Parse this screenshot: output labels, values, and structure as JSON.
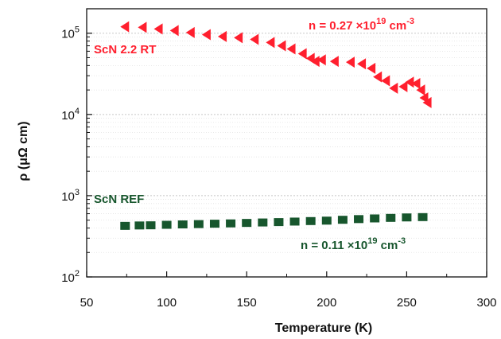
{
  "chart_data": {
    "type": "scatter",
    "xlabel": "Temperature (K)",
    "ylabel": "ρ (μΩ cm)",
    "xlim": [
      50,
      300
    ],
    "ylim": [
      100,
      200000
    ],
    "yscale": "log",
    "grid": "horizontal-dotted",
    "x_ticks": [
      50,
      100,
      150,
      200,
      250,
      300
    ],
    "y_ticks": [
      {
        "value": 100,
        "base": "10",
        "exp": "2"
      },
      {
        "value": 1000,
        "base": "10",
        "exp": "3"
      },
      {
        "value": 10000,
        "base": "10",
        "exp": "4"
      },
      {
        "value": 100000,
        "base": "10",
        "exp": "5"
      }
    ],
    "series": [
      {
        "name": "ScN 2.2 RT",
        "color": "#ff1f2e",
        "marker": "left-triangle",
        "x": [
          74,
          85,
          95,
          105,
          115,
          125,
          135,
          145,
          155,
          165,
          172,
          178,
          185,
          190,
          193,
          197,
          205,
          215,
          222,
          228,
          232,
          237,
          242,
          248,
          252,
          256,
          259,
          261,
          263
        ],
        "y": [
          120000,
          118000,
          113000,
          108000,
          102000,
          96000,
          91000,
          88000,
          84000,
          77000,
          70000,
          64000,
          56000,
          49000,
          45000,
          47000,
          45000,
          44000,
          42000,
          37000,
          29000,
          26000,
          21000,
          22000,
          25000,
          24000,
          20000,
          16000,
          14000
        ]
      },
      {
        "name": "ScN REF",
        "color": "#17562d",
        "marker": "square",
        "x": [
          74,
          83,
          90,
          100,
          110,
          120,
          130,
          140,
          150,
          160,
          170,
          180,
          190,
          200,
          210,
          220,
          230,
          240,
          250,
          260
        ],
        "y": [
          425,
          430,
          432,
          438,
          443,
          447,
          452,
          456,
          462,
          468,
          473,
          480,
          487,
          493,
          505,
          515,
          525,
          533,
          540,
          545
        ]
      }
    ],
    "annotations": [
      {
        "series_label": "ScN 2.2 RT",
        "carrier_text": "n = 0.27 ×10",
        "exp": "19",
        "unit": " cm",
        "unit_exp": "-3",
        "color": "#ff1f2e"
      },
      {
        "series_label": "ScN REF",
        "carrier_text": "n = 0.11 ×10",
        "exp": "19",
        "unit": " cm",
        "unit_exp": "-3",
        "color": "#17562d"
      }
    ]
  }
}
